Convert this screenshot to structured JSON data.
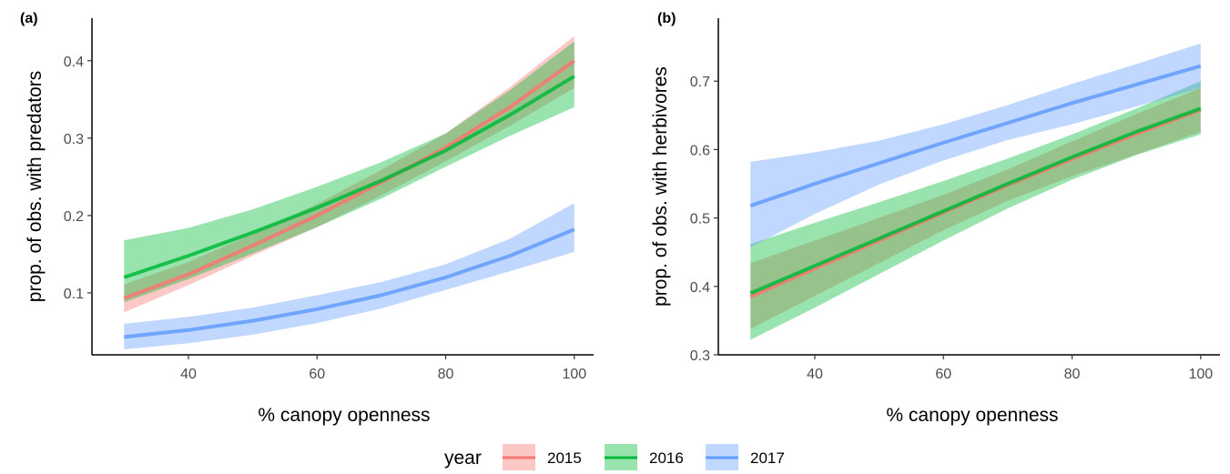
{
  "chart_data": [
    {
      "panel_tag": "(a)",
      "type": "line",
      "xlabel": "% canopy openness",
      "ylabel": "prop. of obs. with predators",
      "xlim": [
        25,
        103
      ],
      "ylim": [
        0.02,
        0.455
      ],
      "x_ticks": [
        40,
        60,
        80,
        100
      ],
      "y_ticks": [
        0.1,
        0.2,
        0.3,
        0.4
      ],
      "y_tick_labels": [
        "0.1",
        "0.2",
        "0.3",
        "0.4"
      ],
      "grid": false,
      "series": [
        {
          "name": "2015",
          "x": [
            30,
            40,
            50,
            60,
            70,
            80,
            90,
            100
          ],
          "values": [
            0.093,
            0.124,
            0.161,
            0.2,
            0.243,
            0.288,
            0.34,
            0.4
          ],
          "lower": [
            0.075,
            0.11,
            0.148,
            0.185,
            0.226,
            0.27,
            0.316,
            0.365
          ],
          "upper": [
            0.111,
            0.14,
            0.176,
            0.215,
            0.259,
            0.306,
            0.366,
            0.432
          ]
        },
        {
          "name": "2016",
          "x": [
            30,
            40,
            50,
            60,
            70,
            80,
            90,
            100
          ],
          "values": [
            0.12,
            0.148,
            0.178,
            0.21,
            0.245,
            0.284,
            0.33,
            0.38
          ],
          "lower": [
            0.088,
            0.118,
            0.151,
            0.185,
            0.222,
            0.263,
            0.303,
            0.34
          ],
          "upper": [
            0.168,
            0.184,
            0.208,
            0.237,
            0.269,
            0.306,
            0.362,
            0.425
          ]
        },
        {
          "name": "2017",
          "x": [
            30,
            40,
            50,
            60,
            70,
            80,
            90,
            100
          ],
          "values": [
            0.043,
            0.052,
            0.064,
            0.079,
            0.097,
            0.12,
            0.148,
            0.182
          ],
          "lower": [
            0.027,
            0.035,
            0.046,
            0.061,
            0.08,
            0.104,
            0.128,
            0.153
          ],
          "upper": [
            0.06,
            0.069,
            0.081,
            0.097,
            0.114,
            0.137,
            0.17,
            0.216
          ]
        }
      ]
    },
    {
      "panel_tag": "(b)",
      "type": "line",
      "xlabel": "% canopy openness",
      "ylabel": "prop. of obs. with herbivores",
      "xlim": [
        25,
        103
      ],
      "ylim": [
        0.3,
        0.792
      ],
      "x_ticks": [
        40,
        60,
        80,
        100
      ],
      "y_ticks": [
        0.3,
        0.4,
        0.5,
        0.6,
        0.7
      ],
      "y_tick_labels": [
        "0.3",
        "0.4",
        "0.5",
        "0.6",
        "0.7"
      ],
      "grid": false,
      "series": [
        {
          "name": "2015",
          "x": [
            30,
            40,
            50,
            60,
            70,
            80,
            90,
            100
          ],
          "values": [
            0.385,
            0.426,
            0.467,
            0.508,
            0.548,
            0.586,
            0.623,
            0.658
          ],
          "lower": [
            0.338,
            0.386,
            0.434,
            0.482,
            0.525,
            0.561,
            0.593,
            0.626
          ],
          "upper": [
            0.434,
            0.467,
            0.5,
            0.534,
            0.571,
            0.612,
            0.652,
            0.69
          ]
        },
        {
          "name": "2016",
          "x": [
            30,
            40,
            50,
            60,
            70,
            80,
            90,
            100
          ],
          "values": [
            0.39,
            0.43,
            0.47,
            0.51,
            0.55,
            0.589,
            0.626,
            0.66
          ],
          "lower": [
            0.322,
            0.369,
            0.418,
            0.467,
            0.514,
            0.556,
            0.592,
            0.622
          ],
          "upper": [
            0.462,
            0.493,
            0.523,
            0.554,
            0.587,
            0.622,
            0.66,
            0.7
          ]
        },
        {
          "name": "2017",
          "x": [
            30,
            40,
            50,
            60,
            70,
            80,
            90,
            100
          ],
          "values": [
            0.518,
            0.55,
            0.58,
            0.61,
            0.639,
            0.668,
            0.695,
            0.722
          ],
          "lower": [
            0.457,
            0.506,
            0.549,
            0.584,
            0.614,
            0.637,
            0.663,
            0.69
          ],
          "upper": [
            0.582,
            0.596,
            0.613,
            0.637,
            0.665,
            0.696,
            0.725,
            0.755
          ]
        }
      ]
    }
  ],
  "legend": {
    "title": "year",
    "placement": "bottom",
    "items": [
      {
        "label": "2015",
        "line_color": "#F8766D",
        "fill_color": "#F8766D"
      },
      {
        "label": "2016",
        "line_color": "#00BA38",
        "fill_color": "#00BA38"
      },
      {
        "label": "2017",
        "line_color": "#619CFF",
        "fill_color": "#619CFF"
      }
    ]
  },
  "colors": {
    "2015": "#F8766D",
    "2016": "#00BA38",
    "2017": "#619CFF"
  }
}
